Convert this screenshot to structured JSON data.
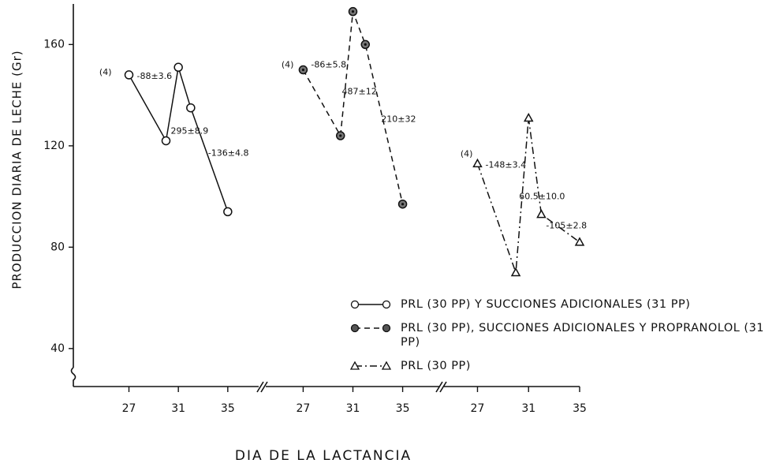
{
  "chart_data": [
    {
      "type": "line",
      "y_label": "PRODUCCION DIARIA DE LECHE (Gr)",
      "x_label": "DIA DE LA LACTANCIA",
      "ylim": [
        25,
        176
      ],
      "yticks": [
        40,
        80,
        120,
        160
      ],
      "x": [
        27,
        30,
        31,
        32,
        35
      ],
      "xlim": [
        22.5,
        37.5
      ],
      "xticks": [
        27,
        31,
        35
      ],
      "series": [
        {
          "name": "PRL (30 PP) Y SUCCIONES ADICIONALES (31 PP)",
          "color": "#111111",
          "marker": "circle-open",
          "line_style": "solid",
          "values": [
            148,
            122,
            151,
            135,
            94
          ]
        }
      ],
      "annotations": [
        "(4)",
        "-88±3.6",
        "295±8.9",
        "-136±4.8"
      ]
    },
    {
      "type": "line",
      "ylim": [
        25,
        176
      ],
      "x": [
        27,
        30,
        31,
        32,
        35
      ],
      "xlim": [
        24.5,
        37.5
      ],
      "xticks": [
        27,
        31,
        35
      ],
      "series": [
        {
          "name": "PRL (30 PP), SUCCIONES ADICIONALES Y PROPRANOLOL (31 PP)",
          "color": "#111111",
          "marker": "circle-filled",
          "line_style": "dashed",
          "values": [
            150,
            124,
            173,
            160,
            97
          ]
        }
      ],
      "annotations": [
        "(4)",
        "-86±5.8",
        "487±12",
        "210±32"
      ]
    },
    {
      "type": "line",
      "ylim": [
        25,
        176
      ],
      "x": [
        27,
        30,
        31,
        32,
        35
      ],
      "xlim": [
        24.5,
        35
      ],
      "xticks": [
        27,
        31,
        35
      ],
      "series": [
        {
          "name": "PRL (30 PP)",
          "color": "#111111",
          "marker": "triangle-open",
          "line_style": "dashdot",
          "values": [
            113,
            70,
            131,
            93,
            82
          ]
        }
      ],
      "annotations": [
        "(4)",
        "-148±3.4",
        "60.5±10.0",
        "-105±2.8"
      ]
    }
  ]
}
